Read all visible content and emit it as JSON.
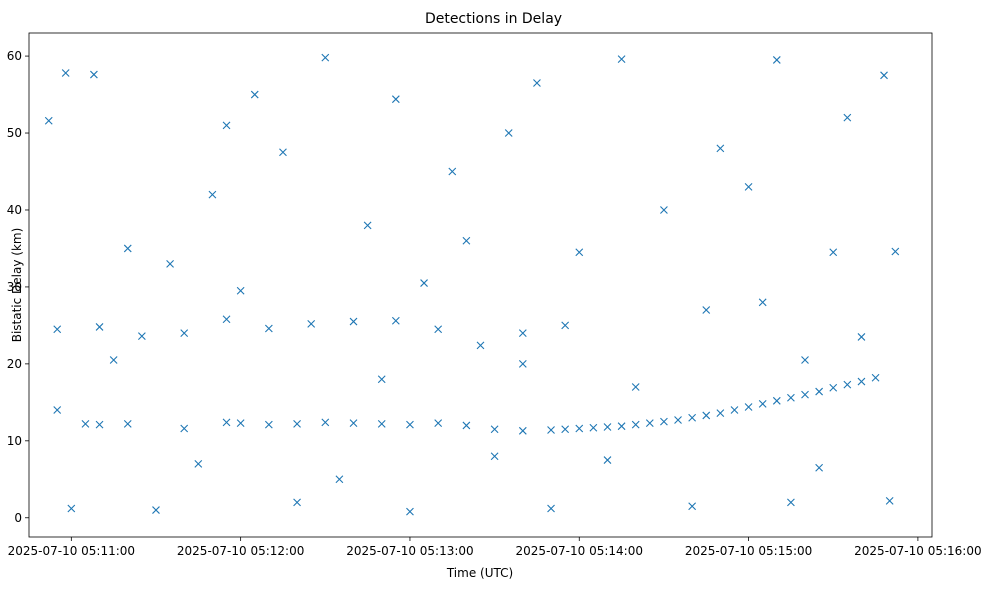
{
  "chart_data": {
    "type": "scatter",
    "title": "Detections in Delay",
    "xlabel": "Time (UTC)",
    "ylabel": "Bistatic Delay (km)",
    "x_axis": {
      "type": "time",
      "min": "2025-07-10 05:10:45",
      "max": "2025-07-10 05:16:05",
      "ticks": [
        {
          "value": "2025-07-10 05:11:00",
          "label": "2025-07-10 05:11:00"
        },
        {
          "value": "2025-07-10 05:12:00",
          "label": "2025-07-10 05:12:00"
        },
        {
          "value": "2025-07-10 05:13:00",
          "label": "2025-07-10 05:13:00"
        },
        {
          "value": "2025-07-10 05:14:00",
          "label": "2025-07-10 05:14:00"
        },
        {
          "value": "2025-07-10 05:15:00",
          "label": "2025-07-10 05:15:00"
        },
        {
          "value": "2025-07-10 05:16:00",
          "label": "2025-07-10 05:16:00"
        }
      ]
    },
    "y_axis": {
      "min": -2.5,
      "max": 63,
      "ticks": [
        0,
        10,
        20,
        30,
        40,
        50,
        60
      ]
    },
    "marker": "x",
    "color": "#1f77b4",
    "grid": false,
    "legend": "none",
    "series": [
      {
        "description": "Track A: curve from ~10 km at 05:13:40 rising to ~18 km at 05:15:50",
        "points": [
          [
            "2025-07-10 05:13:50",
            11.4
          ],
          [
            "2025-07-10 05:13:55",
            11.5
          ],
          [
            "2025-07-10 05:14:00",
            11.6
          ],
          [
            "2025-07-10 05:14:05",
            11.7
          ],
          [
            "2025-07-10 05:14:10",
            11.8
          ],
          [
            "2025-07-10 05:14:15",
            11.9
          ],
          [
            "2025-07-10 05:14:20",
            12.1
          ],
          [
            "2025-07-10 05:14:25",
            12.3
          ],
          [
            "2025-07-10 05:14:30",
            12.5
          ],
          [
            "2025-07-10 05:14:35",
            12.7
          ],
          [
            "2025-07-10 05:14:40",
            13.0
          ],
          [
            "2025-07-10 05:14:45",
            13.3
          ],
          [
            "2025-07-10 05:14:50",
            13.6
          ],
          [
            "2025-07-10 05:14:55",
            14.0
          ],
          [
            "2025-07-10 05:15:00",
            14.4
          ],
          [
            "2025-07-10 05:15:05",
            14.8
          ],
          [
            "2025-07-10 05:15:10",
            15.2
          ],
          [
            "2025-07-10 05:15:15",
            15.6
          ],
          [
            "2025-07-10 05:15:20",
            16.0
          ],
          [
            "2025-07-10 05:15:25",
            16.4
          ],
          [
            "2025-07-10 05:15:30",
            16.9
          ],
          [
            "2025-07-10 05:15:35",
            17.3
          ],
          [
            "2025-07-10 05:15:40",
            17.7
          ],
          [
            "2025-07-10 05:15:45",
            18.2
          ]
        ]
      },
      {
        "description": "Track B: band near 12 km",
        "points": [
          [
            "2025-07-10 05:11:05",
            12.2
          ],
          [
            "2025-07-10 05:11:10",
            12.1
          ],
          [
            "2025-07-10 05:11:20",
            12.2
          ],
          [
            "2025-07-10 05:11:40",
            11.6
          ],
          [
            "2025-07-10 05:11:55",
            12.4
          ],
          [
            "2025-07-10 05:12:00",
            12.3
          ],
          [
            "2025-07-10 05:12:10",
            12.1
          ],
          [
            "2025-07-10 05:12:20",
            12.2
          ],
          [
            "2025-07-10 05:12:30",
            12.4
          ],
          [
            "2025-07-10 05:12:40",
            12.3
          ],
          [
            "2025-07-10 05:12:50",
            12.2
          ],
          [
            "2025-07-10 05:13:00",
            12.1
          ],
          [
            "2025-07-10 05:13:10",
            12.3
          ],
          [
            "2025-07-10 05:13:20",
            12.0
          ],
          [
            "2025-07-10 05:13:30",
            11.5
          ],
          [
            "2025-07-10 05:13:40",
            11.3
          ]
        ]
      },
      {
        "description": "Track C: band near 25 km",
        "points": [
          [
            "2025-07-10 05:10:55",
            24.5
          ],
          [
            "2025-07-10 05:11:10",
            24.8
          ],
          [
            "2025-07-10 05:11:25",
            23.6
          ],
          [
            "2025-07-10 05:11:40",
            24.0
          ],
          [
            "2025-07-10 05:11:55",
            25.8
          ],
          [
            "2025-07-10 05:12:10",
            24.6
          ],
          [
            "2025-07-10 05:12:25",
            25.2
          ],
          [
            "2025-07-10 05:12:40",
            25.5
          ],
          [
            "2025-07-10 05:12:55",
            25.6
          ],
          [
            "2025-07-10 05:13:10",
            24.5
          ],
          [
            "2025-07-10 05:13:25",
            22.4
          ],
          [
            "2025-07-10 05:13:40",
            24.0
          ],
          [
            "2025-07-10 05:13:55",
            25.0
          ]
        ]
      },
      {
        "description": "Scattered detections",
        "points": [
          [
            "2025-07-10 05:10:52",
            51.6
          ],
          [
            "2025-07-10 05:10:58",
            57.8
          ],
          [
            "2025-07-10 05:11:08",
            57.6
          ],
          [
            "2025-07-10 05:11:20",
            35.0
          ],
          [
            "2025-07-10 05:11:35",
            33.0
          ],
          [
            "2025-07-10 05:11:50",
            42.0
          ],
          [
            "2025-07-10 05:12:05",
            55.0
          ],
          [
            "2025-07-10 05:12:15",
            47.5
          ],
          [
            "2025-07-10 05:12:30",
            59.8
          ],
          [
            "2025-07-10 05:12:45",
            38.0
          ],
          [
            "2025-07-10 05:12:55",
            54.4
          ],
          [
            "2025-07-10 05:13:05",
            30.5
          ],
          [
            "2025-07-10 05:13:15",
            45.0
          ],
          [
            "2025-07-10 05:13:30",
            8.0
          ],
          [
            "2025-07-10 05:13:45",
            56.5
          ],
          [
            "2025-07-10 05:14:00",
            34.5
          ],
          [
            "2025-07-10 05:14:15",
            59.6
          ],
          [
            "2025-07-10 05:14:30",
            40.0
          ],
          [
            "2025-07-10 05:14:45",
            27.0
          ],
          [
            "2025-07-10 05:15:00",
            43.0
          ],
          [
            "2025-07-10 05:15:10",
            59.5
          ],
          [
            "2025-07-10 05:15:20",
            20.5
          ],
          [
            "2025-07-10 05:15:30",
            34.5
          ],
          [
            "2025-07-10 05:15:40",
            23.5
          ],
          [
            "2025-07-10 05:15:48",
            57.5
          ],
          [
            "2025-07-10 05:15:52",
            34.6
          ],
          [
            "2025-07-10 05:10:55",
            14.0
          ],
          [
            "2025-07-10 05:11:00",
            1.2
          ],
          [
            "2025-07-10 05:11:30",
            1.0
          ],
          [
            "2025-07-10 05:12:20",
            2.0
          ],
          [
            "2025-07-10 05:13:00",
            0.8
          ],
          [
            "2025-07-10 05:13:50",
            1.2
          ],
          [
            "2025-07-10 05:14:40",
            1.5
          ],
          [
            "2025-07-10 05:15:15",
            2.0
          ],
          [
            "2025-07-10 05:15:50",
            2.2
          ],
          [
            "2025-07-10 05:11:45",
            7.0
          ],
          [
            "2025-07-10 05:12:35",
            5.0
          ],
          [
            "2025-07-10 05:14:10",
            7.5
          ],
          [
            "2025-07-10 05:15:25",
            6.5
          ],
          [
            "2025-07-10 05:12:50",
            18.0
          ],
          [
            "2025-07-10 05:14:20",
            17.0
          ],
          [
            "2025-07-10 05:11:15",
            20.5
          ],
          [
            "2025-07-10 05:13:40",
            20.0
          ],
          [
            "2025-07-10 05:15:05",
            28.0
          ],
          [
            "2025-07-10 05:12:00",
            29.5
          ],
          [
            "2025-07-10 05:13:20",
            36.0
          ],
          [
            "2025-07-10 05:14:50",
            48.0
          ],
          [
            "2025-07-10 05:11:55",
            51.0
          ],
          [
            "2025-07-10 05:13:35",
            50.0
          ],
          [
            "2025-07-10 05:15:35",
            52.0
          ]
        ]
      }
    ]
  }
}
